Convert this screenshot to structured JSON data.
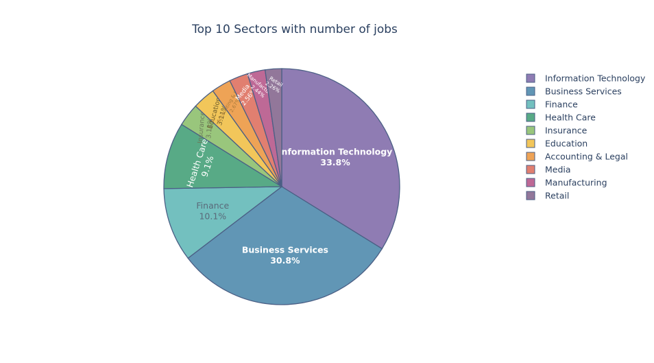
{
  "chart_data": {
    "type": "pie",
    "title": "Top 10 Sectors with number of jobs",
    "categories": [
      "Information Technology",
      "Business Services",
      "Finance",
      "Health Care",
      "Insurance",
      "Education",
      "Accounting & Legal",
      "Media",
      "Manufacturing",
      "Retail"
    ],
    "values": [
      33.8,
      30.8,
      10.1,
      9.1,
      3.11,
      3.11,
      2.67,
      2.56,
      2.44,
      2.26
    ],
    "labels": [
      "33.8%",
      "30.8%",
      "10.1%",
      "9.1%",
      "3.11%",
      "3.11%",
      "2.67%",
      "2.56%",
      "2.44%",
      "2.26%"
    ],
    "colors": [
      "#8f7cb3",
      "#6196b5",
      "#73c0bf",
      "#58aa86",
      "#99c67c",
      "#f2c65a",
      "#eea356",
      "#e17f70",
      "#be6996",
      "#92779a"
    ],
    "legend_placement": "top-right"
  }
}
